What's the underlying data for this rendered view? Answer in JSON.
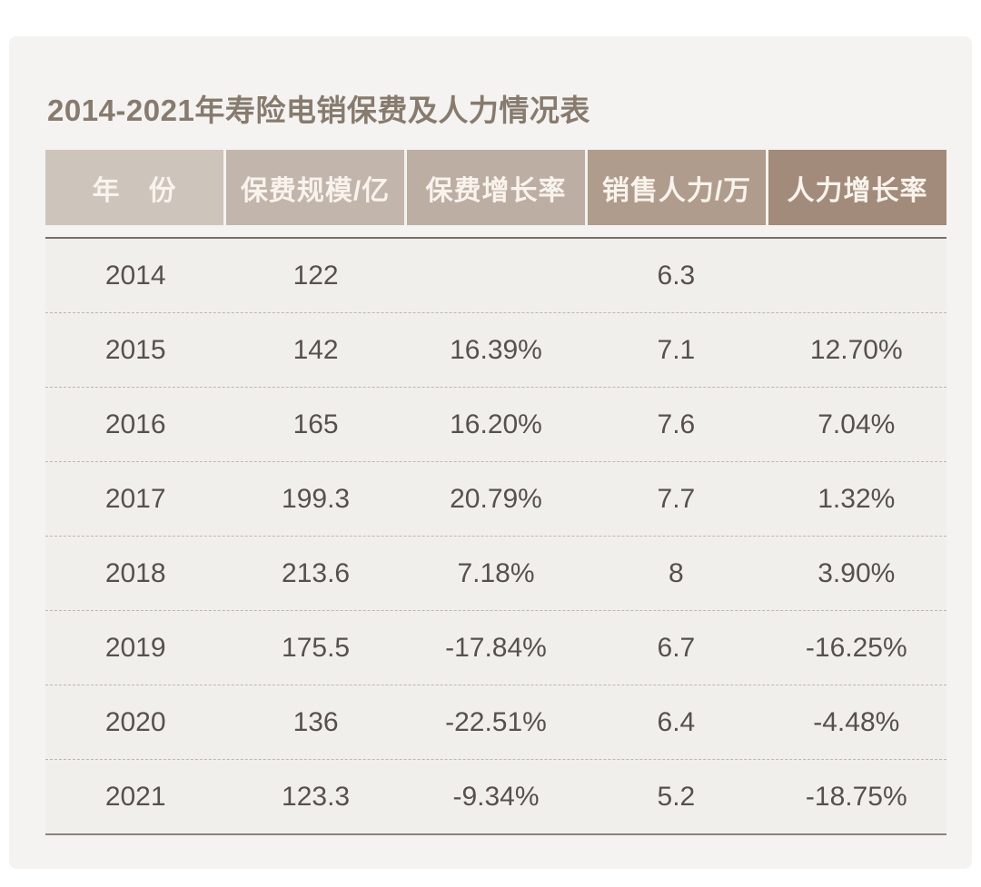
{
  "page": {
    "title": "2014-2021年寿险电销保费及人力情况表"
  },
  "colors": {
    "page_bg": "#ffffff",
    "card_bg": "#f4f3f1",
    "row_bg": "#f1efec",
    "title_text": "#877b6e",
    "header_text": "#f8f3ec",
    "data_text": "#56514d",
    "dashed_separator": "#bdb7b0",
    "solid_rule": "#76706a",
    "header_cell_colors": [
      "#cdc5bc",
      "#c2b5ab",
      "#bcaea2",
      "#b09c8c",
      "#a28b7a"
    ]
  },
  "table": {
    "headers": [
      "年　份",
      "保费规模/亿",
      "保费增长率",
      "销售人力/万",
      "人力增长率"
    ],
    "rows": [
      {
        "year": "2014",
        "premium_scale": "122",
        "premium_growth": "",
        "sales_manpower": "6.3",
        "manpower_growth": ""
      },
      {
        "year": "2015",
        "premium_scale": "142",
        "premium_growth": "16.39%",
        "sales_manpower": "7.1",
        "manpower_growth": "12.70%"
      },
      {
        "year": "2016",
        "premium_scale": "165",
        "premium_growth": "16.20%",
        "sales_manpower": "7.6",
        "manpower_growth": "7.04%"
      },
      {
        "year": "2017",
        "premium_scale": "199.3",
        "premium_growth": "20.79%",
        "sales_manpower": "7.7",
        "manpower_growth": "1.32%"
      },
      {
        "year": "2018",
        "premium_scale": "213.6",
        "premium_growth": "7.18%",
        "sales_manpower": "8",
        "manpower_growth": "3.90%"
      },
      {
        "year": "2019",
        "premium_scale": "175.5",
        "premium_growth": "-17.84%",
        "sales_manpower": "6.7",
        "manpower_growth": "-16.25%"
      },
      {
        "year": "2020",
        "premium_scale": "136",
        "premium_growth": "-22.51%",
        "sales_manpower": "6.4",
        "manpower_growth": "-4.48%"
      },
      {
        "year": "2021",
        "premium_scale": "123.3",
        "premium_growth": "-9.34%",
        "sales_manpower": "5.2",
        "manpower_growth": "-18.75%"
      }
    ]
  },
  "chart_data": {
    "type": "table",
    "title": "2014-2021年寿险电销保费及人力情况表",
    "columns": [
      "年份",
      "保费规模/亿",
      "保费增长率",
      "销售人力/万",
      "人力增长率"
    ],
    "years": [
      2014,
      2015,
      2016,
      2017,
      2018,
      2019,
      2020,
      2021
    ],
    "premium_scale_yi": [
      122,
      142,
      165,
      199.3,
      213.6,
      175.5,
      136,
      123.3
    ],
    "premium_growth_pct": [
      null,
      16.39,
      16.2,
      20.79,
      7.18,
      -17.84,
      -22.51,
      -9.34
    ],
    "sales_manpower_wan": [
      6.3,
      7.1,
      7.6,
      7.7,
      8,
      6.7,
      6.4,
      5.2
    ],
    "manpower_growth_pct": [
      null,
      12.7,
      7.04,
      1.32,
      3.9,
      -16.25,
      -4.48,
      -18.75
    ]
  }
}
